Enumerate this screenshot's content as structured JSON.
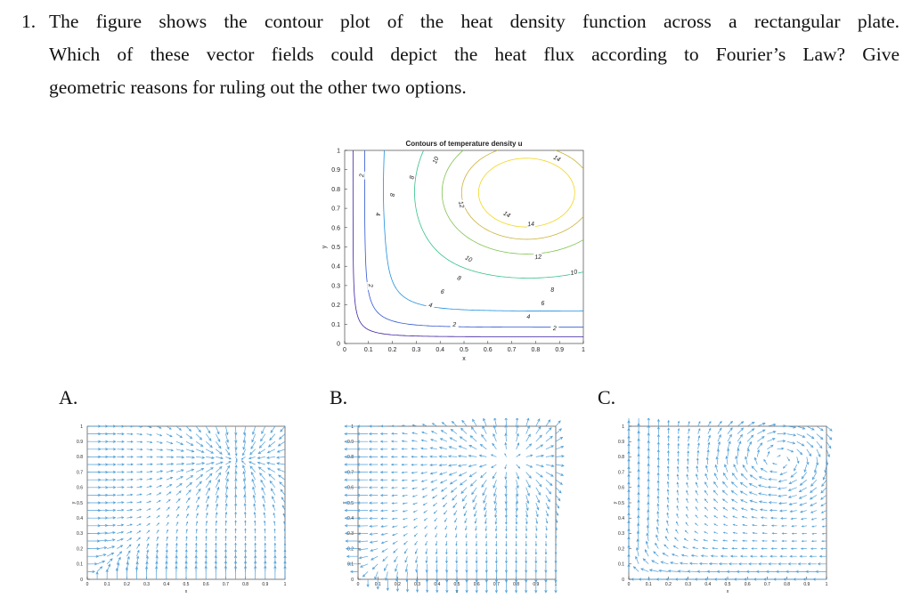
{
  "question": {
    "number": "1.",
    "lines": [
      "The figure shows the contour plot of the heat density function across a rectangular plate.",
      "Which of these vector fields could depict the heat flux according to Fourier’s Law? Give",
      "geometric reasons for ruling out the other two options."
    ]
  },
  "colors": {
    "arrow": "#4f9fd8",
    "axis": "#262626",
    "contour_ramp": [
      "#3d1fa0",
      "#2f55d6",
      "#1d8fe0",
      "#19b4c8",
      "#32c189",
      "#7fc34f",
      "#c9b23a",
      "#f2d61c"
    ]
  },
  "panel_labels": {
    "a": "A.",
    "b": "B.",
    "c": "C."
  },
  "chart_data": [
    {
      "type": "contour",
      "title": "Contours of temperature density u",
      "xlabel": "x",
      "ylabel": "y",
      "xlim": [
        0,
        1
      ],
      "ylim": [
        0,
        1
      ],
      "x_ticks": [
        "0",
        "0.1",
        "0.2",
        "0.3",
        "0.4",
        "0.5",
        "0.6",
        "0.7",
        "0.8",
        "0.9",
        "1"
      ],
      "y_ticks": [
        "0",
        "0.1",
        "0.2",
        "0.3",
        "0.4",
        "0.5",
        "0.6",
        "0.7",
        "0.8",
        "0.9",
        "1"
      ],
      "levels": [
        2,
        4,
        6,
        8,
        10,
        12,
        14
      ],
      "maximum": {
        "x": 0.76,
        "y": 0.78
      },
      "level_labels": [
        {
          "text": "2",
          "x": 0.07,
          "y": 0.87
        },
        {
          "text": "2",
          "x": 0.11,
          "y": 0.3
        },
        {
          "text": "2",
          "x": 0.46,
          "y": 0.1
        },
        {
          "text": "2",
          "x": 0.88,
          "y": 0.08
        },
        {
          "text": "4",
          "x": 0.14,
          "y": 0.67
        },
        {
          "text": "4",
          "x": 0.36,
          "y": 0.2
        },
        {
          "text": "4",
          "x": 0.77,
          "y": 0.14
        },
        {
          "text": "6",
          "x": 0.41,
          "y": 0.27
        },
        {
          "text": "6",
          "x": 0.83,
          "y": 0.21
        },
        {
          "text": "8",
          "x": 0.2,
          "y": 0.77
        },
        {
          "text": "8",
          "x": 0.28,
          "y": 0.86
        },
        {
          "text": "8",
          "x": 0.48,
          "y": 0.34
        },
        {
          "text": "8",
          "x": 0.87,
          "y": 0.28
        },
        {
          "text": "10",
          "x": 0.38,
          "y": 0.95
        },
        {
          "text": "10",
          "x": 0.52,
          "y": 0.44
        },
        {
          "text": "10",
          "x": 0.96,
          "y": 0.37
        },
        {
          "text": "12",
          "x": 0.49,
          "y": 0.72
        },
        {
          "text": "12",
          "x": 0.81,
          "y": 0.45
        },
        {
          "text": "14",
          "x": 0.68,
          "y": 0.67
        },
        {
          "text": "14",
          "x": 0.78,
          "y": 0.62
        },
        {
          "text": "14",
          "x": 0.89,
          "y": 0.96
        }
      ]
    },
    {
      "type": "quiver",
      "panel": "A",
      "xlabel": "x",
      "ylabel": "y",
      "xlim": [
        0,
        1
      ],
      "ylim": [
        0,
        1
      ],
      "x_ticks": [
        "0",
        "0.1",
        "0.2",
        "0.3",
        "0.4",
        "0.5",
        "0.6",
        "0.7",
        "0.8",
        "0.9",
        "1"
      ],
      "y_ticks": [
        "0",
        "0.1",
        "0.2",
        "0.3",
        "0.4",
        "0.5",
        "0.6",
        "0.7",
        "0.8",
        "0.9",
        "1"
      ],
      "field": "points toward the maximum (gradient direction)"
    },
    {
      "type": "quiver",
      "panel": "B",
      "xlabel": "x",
      "ylabel": "y",
      "xlim": [
        0,
        1
      ],
      "ylim": [
        0,
        1
      ],
      "x_ticks": [
        "0",
        "0.1",
        "0.2",
        "0.3",
        "0.4",
        "0.5",
        "0.6",
        "0.7",
        "0.8",
        "0.9",
        "1"
      ],
      "y_ticks": [
        "0",
        "0.1",
        "0.2",
        "0.3",
        "0.4",
        "0.5",
        "0.6",
        "0.7",
        "0.8",
        "0.9",
        "1"
      ],
      "field": "points away from the maximum (negative gradient)"
    },
    {
      "type": "quiver",
      "panel": "C",
      "xlabel": "x",
      "ylabel": "y",
      "xlim": [
        0,
        1
      ],
      "ylim": [
        0,
        1
      ],
      "x_ticks": [
        "0",
        "0.1",
        "0.2",
        "0.3",
        "0.4",
        "0.5",
        "0.6",
        "0.7",
        "0.8",
        "0.9",
        "1"
      ],
      "y_ticks": [
        "0",
        "0.1",
        "0.2",
        "0.3",
        "0.4",
        "0.5",
        "0.6",
        "0.7",
        "0.8",
        "0.9",
        "1"
      ],
      "field": "tangent to the contours (circulating)"
    }
  ]
}
